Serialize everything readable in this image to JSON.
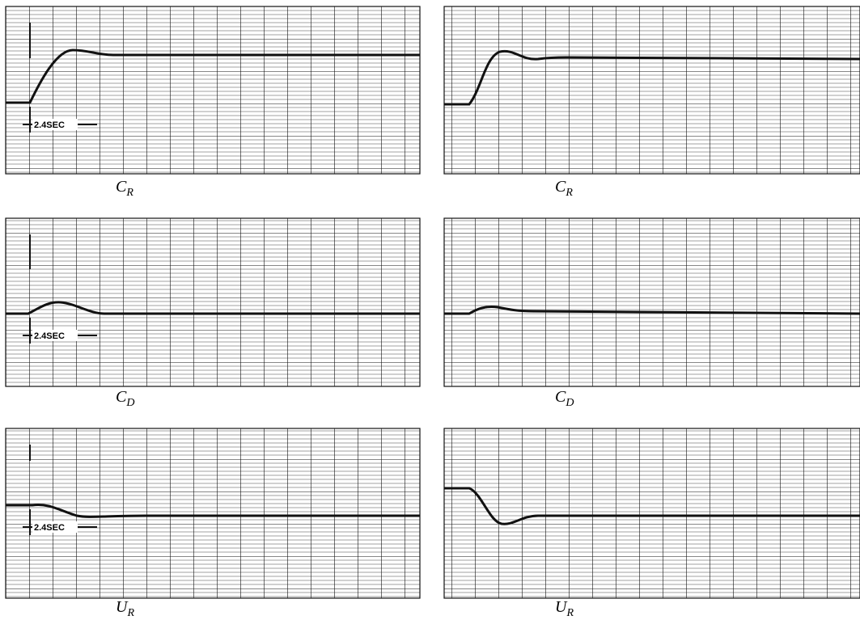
{
  "panels": [
    {
      "label": {
        "main": "C",
        "sub": "R"
      },
      "time_marker": "2.4SEC"
    },
    {
      "label": {
        "main": "C",
        "sub": "R"
      }
    },
    {
      "label": {
        "main": "C",
        "sub": "D"
      },
      "time_marker": "2.4SEC"
    },
    {
      "label": {
        "main": "C",
        "sub": "D"
      }
    },
    {
      "label": {
        "main": "U",
        "sub": "R"
      },
      "time_marker": "2.4SEC"
    },
    {
      "label": {
        "main": "U",
        "sub": "R"
      }
    }
  ]
}
